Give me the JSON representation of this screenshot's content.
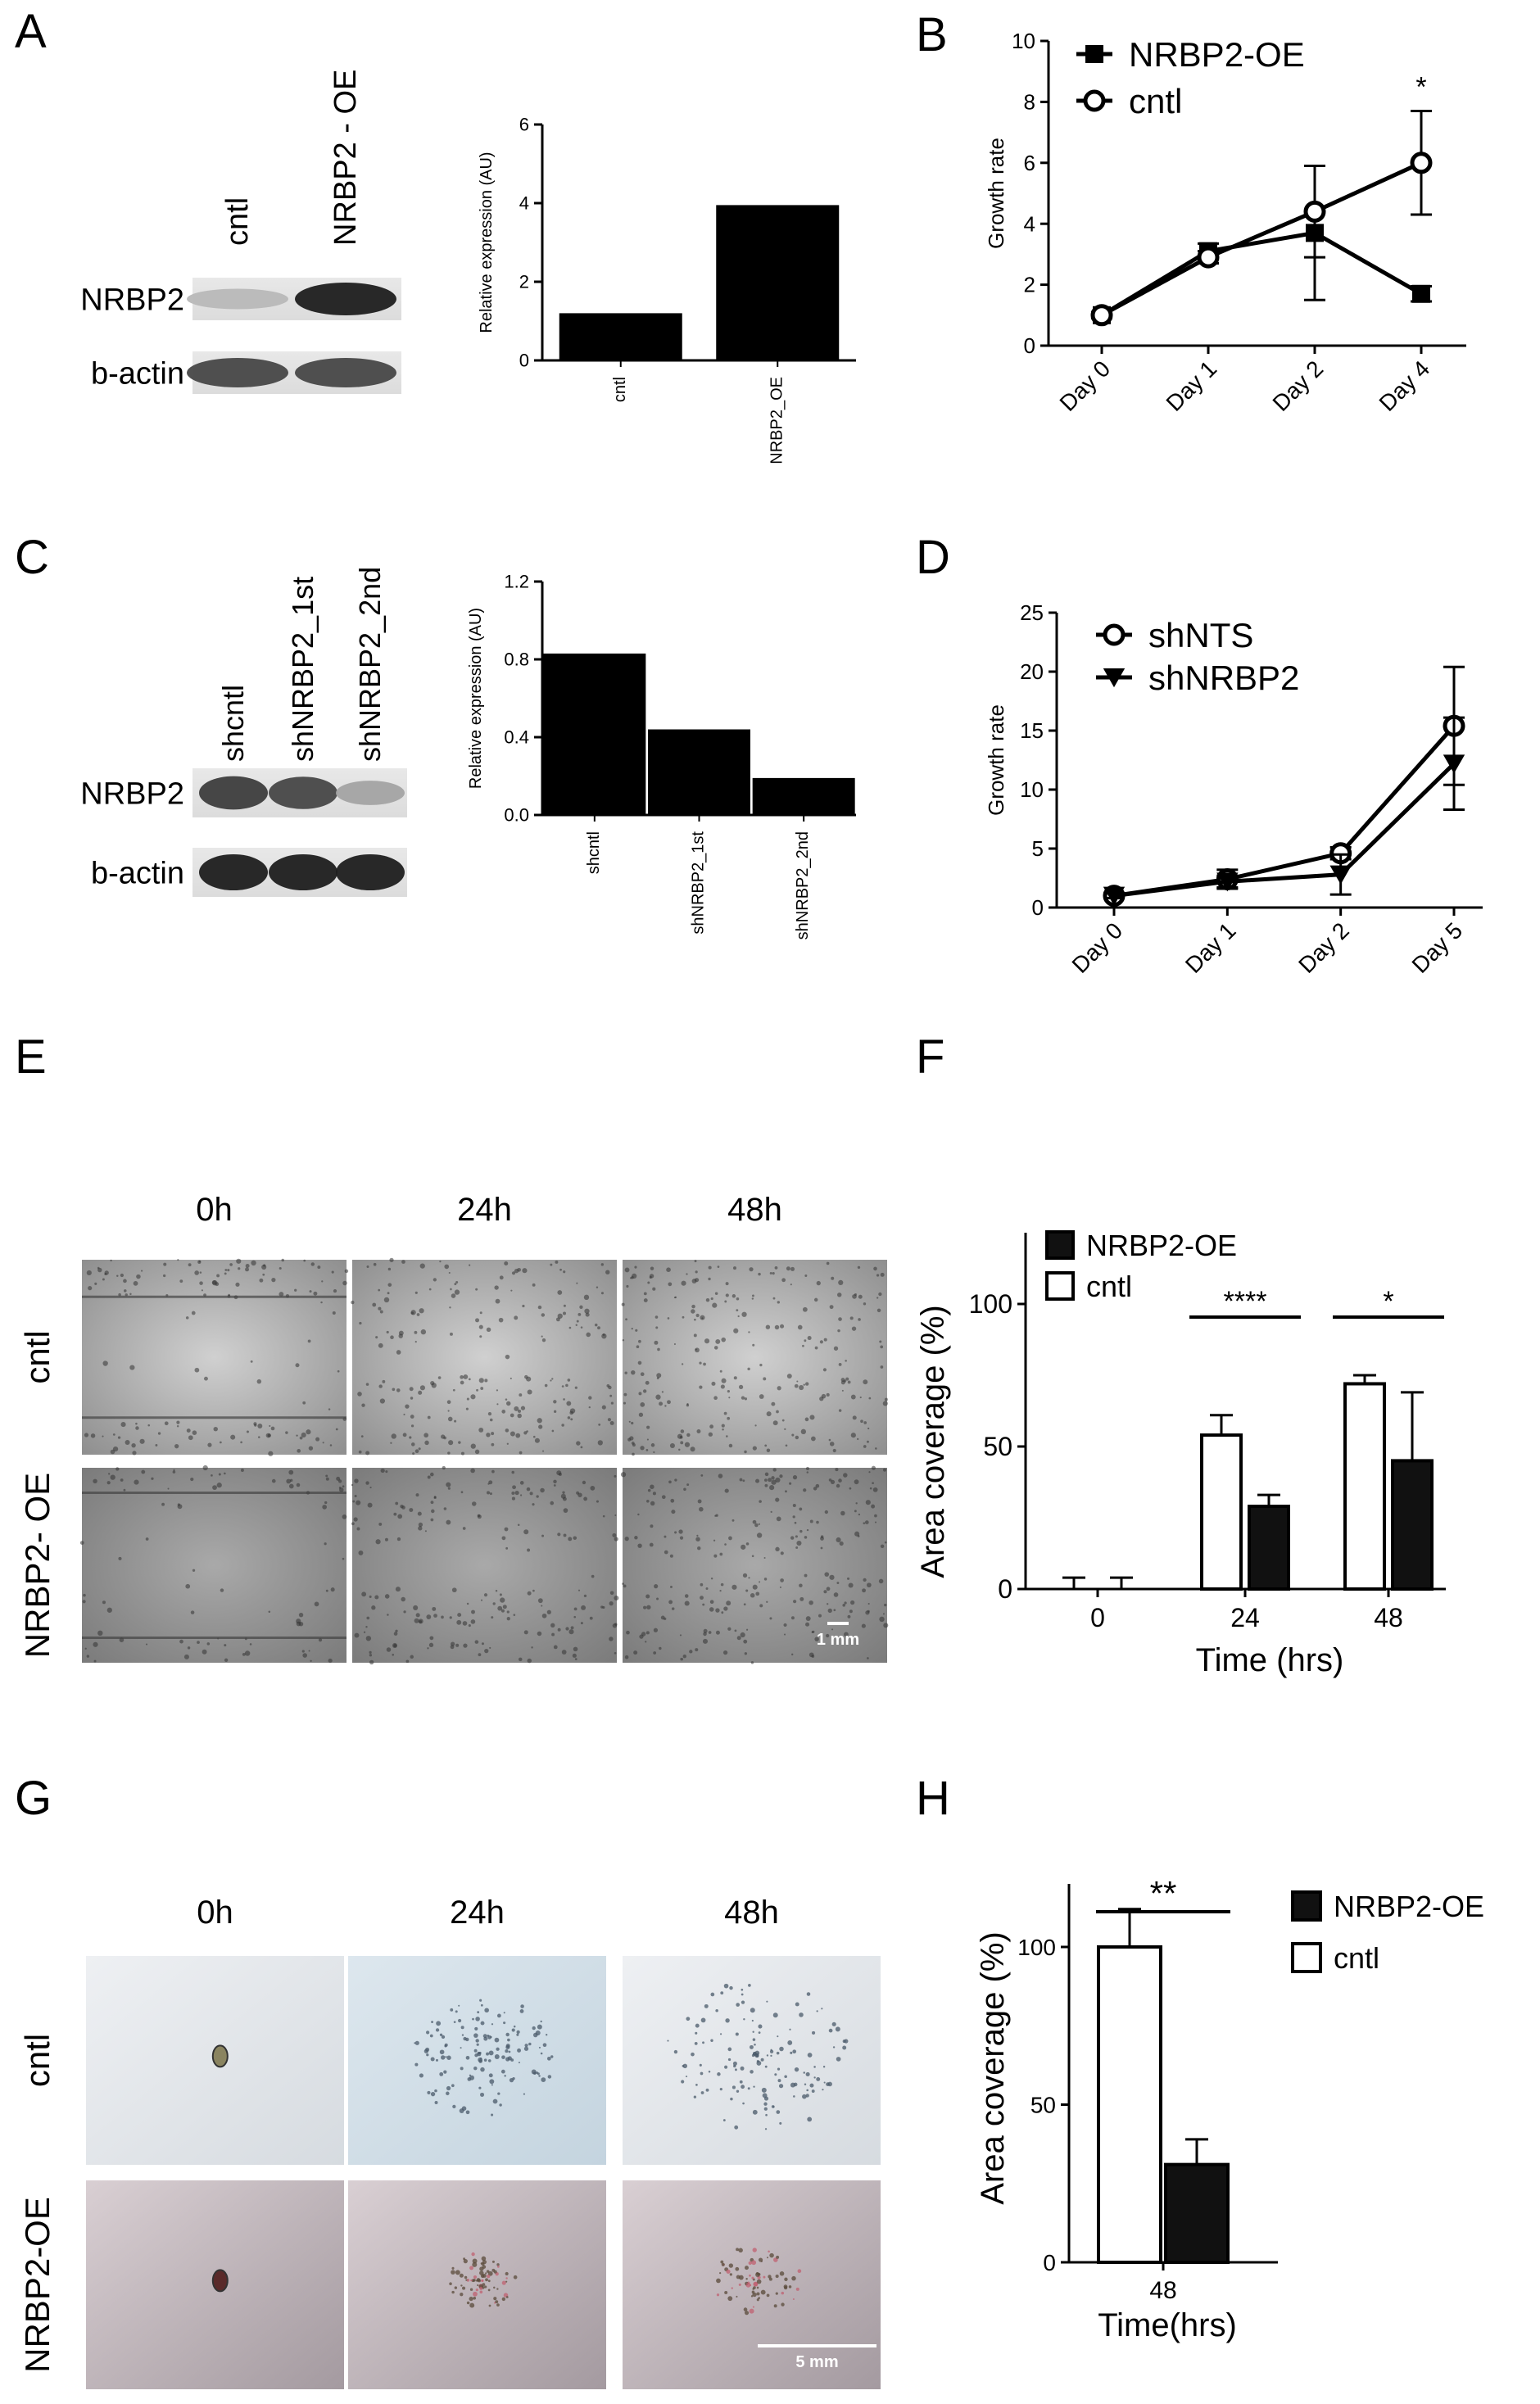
{
  "panels": {
    "A": {
      "letter": "A",
      "blot": {
        "lanes": [
          "cntl",
          "NRBP2 - OE"
        ],
        "bands": [
          "NRBP2",
          "b-actin"
        ],
        "levels": {
          "NRBP2": [
            0.25,
            1.0
          ],
          "b-actin": [
            0.8,
            0.8
          ]
        }
      },
      "chart": {
        "type": "bar",
        "categories": [
          "cntl",
          "NRBP2_OE"
        ],
        "values": [
          1.2,
          3.95
        ],
        "ylabel": "Relative expression (AU)",
        "ylim": [
          0,
          6
        ],
        "yticks": [
          0,
          2,
          4,
          6
        ]
      }
    },
    "B": {
      "letter": "B",
      "chart": {
        "type": "line",
        "categories": [
          "Day 0",
          "Day 1",
          "Day 2",
          "Day 4"
        ],
        "ylabel": "Growth rate",
        "ylim": [
          0,
          10
        ],
        "yticks": [
          0,
          2,
          4,
          6,
          8,
          10
        ],
        "series": [
          {
            "name": "NRBP2-OE",
            "marker": "square",
            "values": [
              1.0,
              3.1,
              3.7,
              1.7
            ],
            "err": [
              0.1,
              0.25,
              2.2,
              0.25
            ]
          },
          {
            "name": "cntl",
            "marker": "circle",
            "values": [
              1.0,
              2.9,
              4.4,
              6.0
            ],
            "err": [
              0.1,
              0.2,
              1.5,
              1.7
            ]
          }
        ],
        "annotations": [
          {
            "text": "*",
            "category": "Day 4"
          }
        ]
      }
    },
    "C": {
      "letter": "C",
      "blot": {
        "lanes": [
          "shcntl",
          "shNRBP2_1st",
          "shNRBP2_2nd"
        ],
        "bands": [
          "NRBP2",
          "b-actin"
        ],
        "levels": {
          "NRBP2": [
            0.85,
            0.8,
            0.35
          ],
          "b-actin": [
            1.0,
            1.0,
            1.0
          ]
        }
      },
      "chart": {
        "type": "bar",
        "categories": [
          "shcntl",
          "shNRBP2_1st",
          "shNRBP2_2nd"
        ],
        "values": [
          0.83,
          0.44,
          0.19
        ],
        "ylabel": "Relative expression (AU)",
        "ylim": [
          0,
          1.2
        ],
        "yticks": [
          0.0,
          0.4,
          0.8,
          1.2
        ]
      }
    },
    "D": {
      "letter": "D",
      "chart": {
        "type": "line",
        "categories": [
          "Day 0",
          "Day 1",
          "Day 2",
          "Day 5"
        ],
        "ylabel": "Growth rate",
        "ylim": [
          0,
          25
        ],
        "yticks": [
          0,
          5,
          10,
          15,
          20,
          25
        ],
        "series": [
          {
            "name": "shNTS",
            "marker": "circle",
            "values": [
              1.0,
              2.4,
              4.6,
              15.4
            ],
            "err": [
              0.2,
              0.8,
              0.5,
              5.0
            ]
          },
          {
            "name": "shNRBP2",
            "marker": "triangle-down",
            "values": [
              1.0,
              2.2,
              2.8,
              12.2
            ],
            "err": [
              0.2,
              0.5,
              1.7,
              3.9
            ]
          }
        ]
      }
    },
    "E": {
      "letter": "E",
      "timepoints": [
        "0h",
        "24h",
        "48h"
      ],
      "rows": [
        "cntl",
        "NRBP2- OE"
      ],
      "scale_label": "1 mm"
    },
    "F": {
      "letter": "F",
      "chart": {
        "type": "bar",
        "categories": [
          "0",
          "24",
          "48"
        ],
        "xlabel": "Time (hrs)",
        "ylabel": "Area coverage (%)",
        "ylim": [
          0,
          125
        ],
        "yticks": [
          0,
          50,
          100
        ],
        "series": [
          {
            "name": "cntl",
            "fill": "#ffffff",
            "values": [
              0,
              54,
              72
            ],
            "err": [
              4,
              7,
              3
            ]
          },
          {
            "name": "NRBP2-OE",
            "fill": "#111111",
            "values": [
              0,
              29,
              45
            ],
            "err": [
              4,
              4,
              24
            ]
          }
        ],
        "legend_order": [
          "NRBP2-OE",
          "cntl"
        ],
        "significance": [
          {
            "category": "24",
            "text": "****"
          },
          {
            "category": "48",
            "text": "*"
          }
        ]
      }
    },
    "G": {
      "letter": "G",
      "timepoints": [
        "0h",
        "24h",
        "48h"
      ],
      "rows": [
        "cntl",
        "NRBP2-OE"
      ],
      "scale_label": "5 mm"
    },
    "H": {
      "letter": "H",
      "chart": {
        "type": "bar",
        "categories": [
          "48"
        ],
        "xlabel": "Time(hrs)",
        "ylabel": "Area coverage (%)",
        "ylim": [
          0,
          120
        ],
        "yticks": [
          0,
          50,
          100
        ],
        "series": [
          {
            "name": "cntl",
            "fill": "#ffffff",
            "values": [
              100
            ],
            "err": [
              12
            ]
          },
          {
            "name": "NRBP2-OE",
            "fill": "#111111",
            "values": [
              31
            ],
            "err": [
              8
            ]
          }
        ],
        "legend_order": [
          "NRBP2-OE",
          "cntl"
        ],
        "significance": [
          {
            "category": "48",
            "text": "**"
          }
        ]
      }
    }
  }
}
